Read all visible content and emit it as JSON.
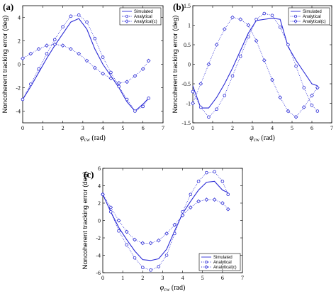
{
  "chart_data": [
    {
      "panel_label": "(a)",
      "type": "line",
      "ylabel": "Noncoherent tracking error (deg)",
      "xlabel": "φcw (rad)",
      "xlim": [
        0,
        7
      ],
      "ylim": [
        -5,
        5
      ],
      "xticks": [
        0,
        1,
        2,
        3,
        4,
        5,
        6,
        7
      ],
      "yticks": [
        -4,
        -2,
        0,
        2,
        4
      ],
      "legend_position": "top-right",
      "series": [
        {
          "name": "Simulated",
          "style": "solid",
          "x": [
            0,
            0.4,
            0.8,
            1.2,
            1.6,
            2.0,
            2.4,
            2.8,
            3.2,
            3.6,
            4.0,
            4.4,
            4.8,
            5.2,
            5.6,
            6.0,
            6.28
          ],
          "y": [
            -3.0,
            -1.9,
            -0.7,
            0.5,
            1.6,
            2.6,
            3.6,
            3.9,
            3.0,
            1.3,
            0.0,
            -1.0,
            -2.0,
            -3.2,
            -4.0,
            -3.4,
            -2.9
          ]
        },
        {
          "name": "Analytical",
          "style": "dotted-circle",
          "x": [
            0,
            0.4,
            0.8,
            1.2,
            1.6,
            2.0,
            2.4,
            2.8,
            3.2,
            3.6,
            4.0,
            4.4,
            4.8,
            5.2,
            5.6,
            6.0,
            6.28
          ],
          "y": [
            -3.0,
            -1.7,
            -0.4,
            0.9,
            2.1,
            3.2,
            4.1,
            4.2,
            3.6,
            2.2,
            0.6,
            -0.7,
            -1.9,
            -3.0,
            -4.0,
            -3.6,
            -2.9
          ]
        },
        {
          "name": "Analytical(c)",
          "style": "dotted-diamond",
          "x": [
            0,
            0.4,
            0.8,
            1.2,
            1.6,
            2.0,
            2.4,
            2.8,
            3.2,
            3.6,
            4.0,
            4.4,
            4.8,
            5.2,
            5.6,
            6.0,
            6.28
          ],
          "y": [
            0.5,
            0.9,
            1.3,
            1.6,
            1.7,
            1.6,
            1.3,
            0.9,
            0.3,
            -0.3,
            -0.8,
            -1.2,
            -1.6,
            -1.5,
            -1.0,
            -0.4,
            0.3
          ]
        }
      ]
    },
    {
      "panel_label": "(b)",
      "type": "line",
      "ylabel": "Noncoherent tracking error (deg)",
      "xlabel": "φcw (rad)",
      "xlim": [
        0,
        7
      ],
      "ylim": [
        -1.5,
        1.5
      ],
      "xticks": [
        0,
        1,
        2,
        3,
        4,
        5,
        6,
        7
      ],
      "yticks": [
        -1.5,
        -1,
        -0.5,
        0,
        0.5,
        1,
        1.5
      ],
      "legend_position": "top-right",
      "series": [
        {
          "name": "Simulated",
          "style": "solid",
          "x": [
            0,
            0.4,
            0.8,
            1.2,
            1.6,
            2.0,
            2.4,
            2.8,
            3.2,
            3.6,
            4.0,
            4.4,
            4.8,
            5.2,
            5.6,
            6.0,
            6.28
          ],
          "y": [
            -0.55,
            -1.12,
            -1.12,
            -0.85,
            -0.5,
            -0.1,
            0.35,
            0.8,
            1.12,
            1.15,
            1.18,
            1.15,
            0.45,
            0.1,
            -0.2,
            -0.5,
            -0.55
          ]
        },
        {
          "name": "Analytical",
          "style": "dotted-circle",
          "x": [
            0,
            0.4,
            0.8,
            1.2,
            1.6,
            2.0,
            2.4,
            2.8,
            3.2,
            3.6,
            4.0,
            4.4,
            4.8,
            5.2,
            5.6,
            6.0,
            6.28
          ],
          "y": [
            -0.7,
            -1.1,
            -1.35,
            -1.15,
            -0.8,
            -0.3,
            0.2,
            0.7,
            1.15,
            1.3,
            1.25,
            0.95,
            0.5,
            -0.05,
            -0.6,
            -1.05,
            -1.2
          ]
        },
        {
          "name": "Analytical(c)",
          "style": "dotted-diamond",
          "x": [
            0,
            0.4,
            0.8,
            1.2,
            1.6,
            2.0,
            2.4,
            2.8,
            3.2,
            3.6,
            4.0,
            4.4,
            4.8,
            5.2,
            5.6,
            6.0,
            6.28
          ],
          "y": [
            -1.0,
            -0.5,
            0.0,
            0.5,
            0.9,
            1.2,
            1.15,
            1.0,
            0.6,
            0.1,
            -0.4,
            -0.85,
            -1.2,
            -1.35,
            -1.1,
            -0.8,
            -0.6
          ]
        }
      ]
    },
    {
      "panel_label": "(c)",
      "type": "line",
      "ylabel": "Noncoherent tracking error (deg)",
      "xlabel": "φcw (rad)",
      "xlim": [
        0,
        7
      ],
      "ylim": [
        -6,
        6
      ],
      "xticks": [
        0,
        1,
        2,
        3,
        4,
        5,
        6,
        7
      ],
      "yticks": [
        -6,
        -4,
        -2,
        0,
        2,
        4,
        6
      ],
      "legend_position": "bottom-right",
      "series": [
        {
          "name": "Simulated",
          "style": "solid",
          "x": [
            0,
            0.4,
            0.8,
            1.2,
            1.6,
            2.0,
            2.4,
            2.8,
            3.2,
            3.6,
            4.0,
            4.4,
            4.8,
            5.2,
            5.6,
            6.0,
            6.28
          ],
          "y": [
            3.0,
            1.0,
            -0.8,
            -2.2,
            -3.5,
            -4.5,
            -4.6,
            -4.4,
            -3.3,
            -1.2,
            0.8,
            2.2,
            3.5,
            4.4,
            4.5,
            3.5,
            3.2
          ]
        },
        {
          "name": "Analytical",
          "style": "dotted-circle",
          "x": [
            0,
            0.4,
            0.8,
            1.2,
            1.6,
            2.0,
            2.4,
            2.8,
            3.2,
            3.6,
            4.0,
            4.4,
            4.8,
            5.2,
            5.6,
            6.0,
            6.28
          ],
          "y": [
            3.0,
            1.0,
            -1.2,
            -2.8,
            -4.3,
            -5.4,
            -5.7,
            -5.3,
            -4.0,
            -1.5,
            1.0,
            3.0,
            4.5,
            5.5,
            5.6,
            4.5,
            3.0
          ]
        },
        {
          "name": "Analytical(c)",
          "style": "dotted-diamond",
          "x": [
            0,
            0.4,
            0.8,
            1.2,
            1.6,
            2.0,
            2.4,
            2.8,
            3.2,
            3.6,
            4.0,
            4.4,
            4.8,
            5.2,
            5.6,
            6.0,
            6.28
          ],
          "y": [
            3.0,
            1.5,
            0.0,
            -1.3,
            -2.2,
            -2.6,
            -2.6,
            -2.3,
            -1.5,
            -0.5,
            0.6,
            1.5,
            2.2,
            2.4,
            2.4,
            2.0,
            1.3
          ]
        }
      ]
    }
  ]
}
